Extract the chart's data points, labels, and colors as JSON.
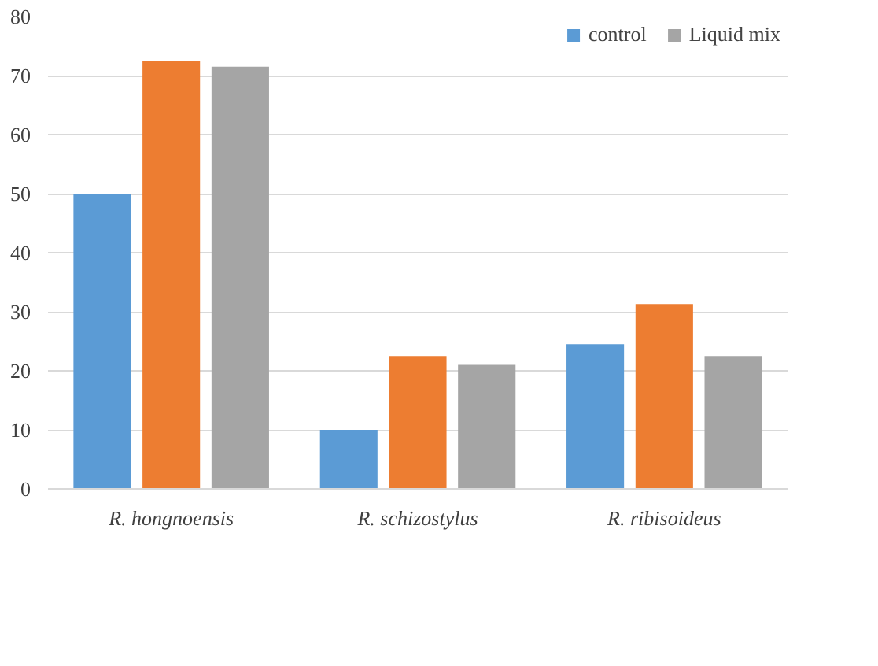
{
  "chart_data": {
    "type": "bar",
    "categories": [
      "R. hongnoensis",
      "R. schizostylus",
      "R. ribisoideus"
    ],
    "series": [
      {
        "name": "control",
        "color": "#5b9bd5",
        "values": [
          50,
          10,
          24.5
        ]
      },
      {
        "color": "#ed7d31",
        "values": [
          72.5,
          22.5,
          31.3
        ]
      },
      {
        "name": "Liquid mix",
        "color": "#a5a5a5",
        "values": [
          71.5,
          21,
          22.5
        ]
      }
    ],
    "ylim": [
      0,
      80
    ],
    "yticks": [
      0,
      10,
      20,
      30,
      40,
      50,
      60,
      70,
      80
    ],
    "grid": "y",
    "legend": "top right"
  }
}
